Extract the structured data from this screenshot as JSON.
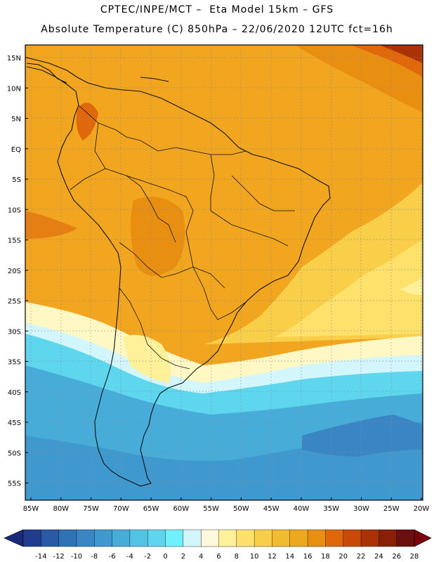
{
  "header": {
    "line1": "CPTEC/INPE/MCT –  Eta Model 15km – GFS",
    "line2": "Absolute Temperature (C) 850hPa – 22/06/2020 12UTC fct=16h"
  },
  "map": {
    "lat_labels": [
      "15N",
      "10N",
      "5N",
      "EQ",
      "5S",
      "10S",
      "15S",
      "20S",
      "25S",
      "30S",
      "35S",
      "40S",
      "45S",
      "50S",
      "55S"
    ],
    "lon_labels": [
      "85W",
      "80W",
      "75W",
      "70W",
      "65W",
      "60W",
      "55W",
      "50W",
      "45W",
      "40W",
      "35W",
      "30W",
      "25W",
      "20W"
    ],
    "field_bands": [
      {
        "label": "warm-orange",
        "color": "#f2a51e"
      },
      {
        "label": "deep-orange",
        "color": "#e57f14"
      },
      {
        "label": "yellow",
        "color": "#fde16a"
      },
      {
        "label": "pale-yellow",
        "color": "#fff8c4"
      },
      {
        "label": "cyan",
        "color": "#5ae0f0"
      },
      {
        "label": "sky-blue",
        "color": "#42b8e0"
      },
      {
        "label": "mid-blue",
        "color": "#3a9fd0"
      }
    ]
  },
  "colorbar": {
    "labels": [
      "-14",
      "-12",
      "-10",
      "-8",
      "-6",
      "-4",
      "-2",
      "0",
      "2",
      "4",
      "6",
      "8",
      "10",
      "12",
      "14",
      "16",
      "18",
      "20",
      "22",
      "24",
      "26",
      "28"
    ],
    "colors": [
      "#1f3d8c",
      "#2a5aa6",
      "#2f72b5",
      "#3a86c4",
      "#3f99cf",
      "#48acd9",
      "#52c3e4",
      "#5ed6ee",
      "#6ff0fa",
      "#d2f6fb",
      "#fff8dc",
      "#fff09a",
      "#fde16a",
      "#f9cf4a",
      "#f2bb2e",
      "#eea81c",
      "#e88f12",
      "#e0680a",
      "#c94a08",
      "#ab3106",
      "#8a1e06",
      "#6b0f0f"
    ],
    "left_arrow_color": "#1a2a78",
    "right_arrow_color": "#7a0010"
  }
}
